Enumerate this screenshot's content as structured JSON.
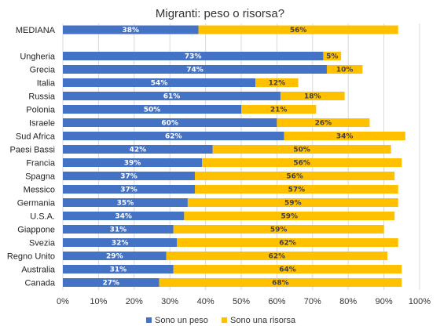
{
  "chart_data": {
    "type": "bar",
    "orientation": "horizontal",
    "stacked": true,
    "title": "Migranti: peso o risorsa?",
    "categories": [
      "MEDIANA",
      "Ungheria",
      "Grecia",
      "Italia",
      "Russia",
      "Polonia",
      "Israele",
      "Sud Africa",
      "Paesi Bassi",
      "Francia",
      "Spagna",
      "Messico",
      "Germania",
      "U.S.A.",
      "Giappone",
      "Svezia",
      "Regno Unito",
      "Australia",
      "Canada"
    ],
    "series": [
      {
        "name": "Sono un peso",
        "color": "#4472c4",
        "label_color": "#ffffff",
        "values": [
          38,
          73,
          74,
          54,
          61,
          50,
          60,
          62,
          42,
          39,
          37,
          37,
          35,
          34,
          31,
          32,
          29,
          31,
          27
        ]
      },
      {
        "name": "Sono una risorsa",
        "color": "#ffc000",
        "label_color": "#404040",
        "values": [
          56,
          5,
          10,
          12,
          18,
          21,
          26,
          34,
          50,
          56,
          56,
          57,
          59,
          59,
          59,
          62,
          62,
          64,
          68
        ]
      }
    ],
    "xlim": [
      0,
      100
    ],
    "xticks": [
      "0%",
      "10%",
      "20%",
      "30%",
      "40%",
      "50%",
      "60%",
      "70%",
      "80%",
      "90%",
      "100%"
    ],
    "grid": true,
    "legend_position": "bottom"
  }
}
